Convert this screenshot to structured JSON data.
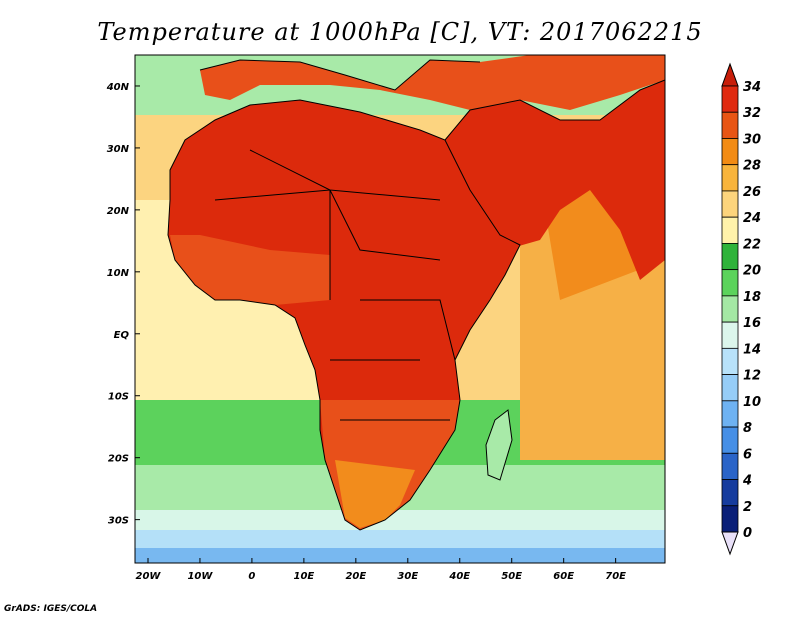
{
  "title": "Temperature at 1000hPa [C], VT: 2017062215",
  "credit": "GrADS: IGES/COLA",
  "lat_labels": [
    "40N",
    "30N",
    "20N",
    "10N",
    "EQ",
    "10S",
    "20S",
    "30S"
  ],
  "lat_values": [
    40,
    30,
    20,
    10,
    0,
    -10,
    -20,
    -30
  ],
  "lon_labels": [
    "20W",
    "10W",
    "0",
    "10E",
    "20E",
    "30E",
    "40E",
    "50E",
    "60E",
    "70E"
  ],
  "lon_values": [
    -20,
    -10,
    0,
    10,
    20,
    30,
    40,
    50,
    60,
    70
  ],
  "colorbar": {
    "labels": [
      "34",
      "32",
      "30",
      "28",
      "26",
      "24",
      "22",
      "20",
      "18",
      "16",
      "14",
      "12",
      "10",
      "8",
      "6",
      "4",
      "2",
      "0"
    ],
    "colors": [
      "#e02a10",
      "#e85514",
      "#f28b14",
      "#f8b43c",
      "#fcd47c",
      "#fff2aa",
      "#2fb33a",
      "#5bd35b",
      "#a4e8a4",
      "#dcf6ec",
      "#b8e2fa",
      "#96cdf7",
      "#6eb2f2",
      "#468fe6",
      "#2a64c8",
      "#163c9e",
      "#0a1f78"
    ],
    "top_arrow_color": "#c81e0a",
    "bottom_arrow_color": "#e8e0f8"
  },
  "map_colors": {
    "hot": "#dc2a0c",
    "hot2": "#e8501a",
    "warm": "#f28c1c",
    "warm2": "#f6b046",
    "mild": "#fcd480",
    "pale": "#fff0b0",
    "green": "#5cd25c",
    "lightgreen": "#a8eaa8",
    "mint": "#d8f6e8",
    "lightblue": "#b4e0f8",
    "blue": "#78b8f0"
  }
}
